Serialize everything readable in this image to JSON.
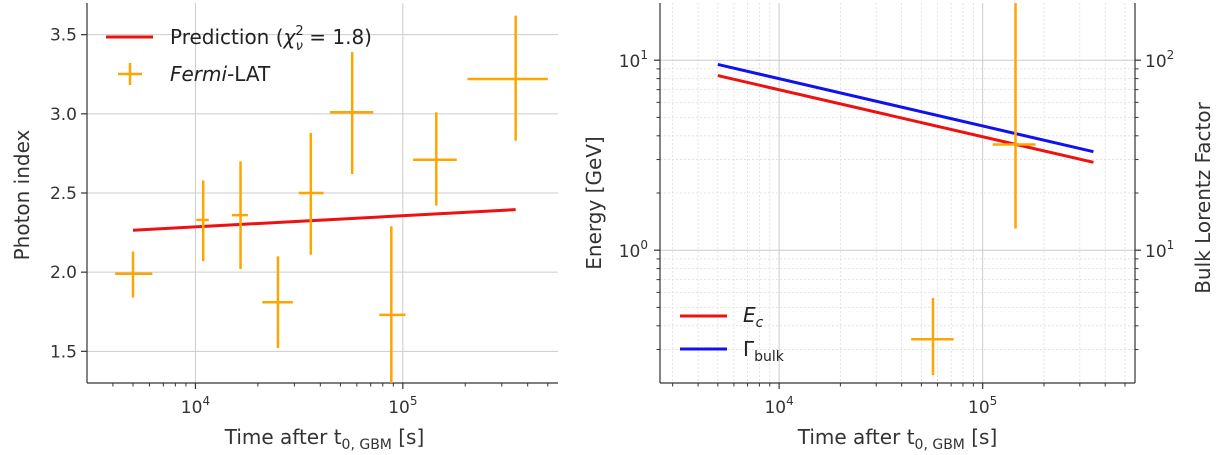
{
  "chart_data": [
    {
      "type": "scatter",
      "xscale": "log",
      "xlim": [
        3000,
        560000
      ],
      "ylim": [
        1.3,
        3.7
      ],
      "xlabel": "Time after t0, GBM [s]",
      "ylabel": "Photon index",
      "x_ticks": [
        {
          "value": 10000,
          "mantissa": "10",
          "exp": "4"
        },
        {
          "value": 100000,
          "mantissa": "10",
          "exp": "5"
        }
      ],
      "y_ticks": [
        1.5,
        2.0,
        2.5,
        3.0,
        3.5
      ],
      "y_tick_labels": [
        "1.5",
        "2.0",
        "2.5",
        "3.0",
        "3.5"
      ],
      "grid": true,
      "legend_placement": "top-left",
      "legend": [
        {
          "label": "Prediction (χ²ν = 1.8)",
          "text": "Prediction (",
          "math": "χ",
          "sup": "2",
          "sub": "ν",
          "rest": " = 1.8)",
          "color": "#ee1111",
          "kind": "line"
        },
        {
          "label": "Fermi-LAT",
          "italic": "Fermi",
          "rest": "-LAT",
          "color": "#ffa500",
          "kind": "errorbar"
        }
      ],
      "series": [
        {
          "name": "Prediction",
          "kind": "line",
          "color": "#ee1111",
          "x": [
            5000,
            350000
          ],
          "y": [
            2.265,
            2.395
          ]
        },
        {
          "name": "Fermi-LAT",
          "kind": "errorbar",
          "color": "#ffa500",
          "points": [
            {
              "x": 5000,
              "xlo": 4100,
              "xhi": 6200,
              "y": 1.99,
              "ylo": 1.84,
              "yhi": 2.13
            },
            {
              "x": 10900,
              "xlo": 10100,
              "xhi": 11600,
              "y": 2.33,
              "ylo": 2.07,
              "yhi": 2.58
            },
            {
              "x": 16500,
              "xlo": 15000,
              "xhi": 17900,
              "y": 2.36,
              "ylo": 2.02,
              "yhi": 2.7
            },
            {
              "x": 25000,
              "xlo": 21000,
              "xhi": 29500,
              "y": 1.81,
              "ylo": 1.52,
              "yhi": 2.1
            },
            {
              "x": 36000,
              "xlo": 31500,
              "xhi": 41500,
              "y": 2.5,
              "ylo": 2.11,
              "yhi": 2.88
            },
            {
              "x": 57000,
              "xlo": 44500,
              "xhi": 72000,
              "y": 3.01,
              "ylo": 2.62,
              "yhi": 3.39
            },
            {
              "x": 88000,
              "xlo": 77000,
              "xhi": 103000,
              "y": 1.73,
              "ylo": 1.3,
              "yhi": 2.29
            },
            {
              "x": 145000,
              "xlo": 112000,
              "xhi": 182000,
              "y": 2.71,
              "ylo": 2.42,
              "yhi": 3.01
            },
            {
              "x": 350000,
              "xlo": 205000,
              "xhi": 500000,
              "y": 3.22,
              "ylo": 2.83,
              "yhi": 3.62
            }
          ]
        }
      ]
    },
    {
      "type": "line",
      "xscale": "log",
      "yscale": "log",
      "xlim": [
        2600,
        560000
      ],
      "ylim": [
        0.2,
        20
      ],
      "y2lim": [
        2,
        200
      ],
      "xlabel": "Time after t0, GBM [s]",
      "ylabel": "Energy [GeV]",
      "y2label": "Bulk Lorentz Factor",
      "x_ticks": [
        {
          "value": 10000,
          "mantissa": "10",
          "exp": "4"
        },
        {
          "value": 100000,
          "mantissa": "10",
          "exp": "5"
        }
      ],
      "y_ticks": [
        {
          "value": 1,
          "mantissa": "10",
          "exp": "0"
        },
        {
          "value": 10,
          "mantissa": "10",
          "exp": "1"
        }
      ],
      "y2_ticks": [
        {
          "value": 10,
          "mantissa": "10",
          "exp": "1"
        },
        {
          "value": 100,
          "mantissa": "10",
          "exp": "2"
        }
      ],
      "grid": true,
      "legend_placement": "bottom-left",
      "legend": [
        {
          "label": "E_c",
          "main": "E",
          "sub": "c",
          "color": "#ee1111"
        },
        {
          "label": "Γ_bulk",
          "main": "Γ",
          "sub": "bulk",
          "color": "#1111ee"
        }
      ],
      "series": [
        {
          "name": "E_c",
          "axis": "left",
          "color": "#ee1111",
          "kind": "line",
          "x": [
            5000,
            350000
          ],
          "y": [
            8.3,
            2.9
          ]
        },
        {
          "name": "Γ_bulk",
          "axis": "right",
          "color": "#1111ee",
          "kind": "line",
          "x": [
            5000,
            350000
          ],
          "y": [
            95,
            33
          ]
        },
        {
          "name": "Fermi-LAT",
          "axis": "left",
          "kind": "errorbar",
          "color": "#ffa500",
          "points": [
            {
              "x": 57000,
              "xlo": 44500,
              "xhi": 72000,
              "y": 0.34,
              "ylo": 0.22,
              "yhi": 0.56
            },
            {
              "x": 145000,
              "xlo": 112000,
              "xhi": 182000,
              "y": 3.6,
              "ylo": 1.3,
              "yhi": 20
            }
          ]
        }
      ]
    }
  ]
}
